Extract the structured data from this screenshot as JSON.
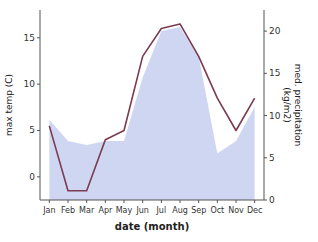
{
  "chart_data": {
    "type": "line",
    "xlabel": "date (month)",
    "ylabel": "max temp (C)",
    "y2label": "med. precipitation\n(kg/m2)",
    "categories": [
      "Jan",
      "Feb",
      "Mar",
      "Apr",
      "May",
      "Jun",
      "Jul",
      "Aug",
      "Sep",
      "Oct",
      "Nov",
      "Dec"
    ],
    "series": [
      {
        "type": "area",
        "axis": "y2",
        "color": "#c5cff0",
        "values": [
          9.5,
          7.0,
          6.5,
          7.0,
          7.0,
          14.5,
          20.0,
          20.5,
          17.0,
          5.5,
          7.0,
          11.0
        ]
      },
      {
        "type": "line",
        "color": "#7B3B50",
        "values": [
          5.5,
          -1.5,
          -1.5,
          4.0,
          5.0,
          13.0,
          16.0,
          16.5,
          13.0,
          8.5,
          5.0,
          8.5
        ]
      }
    ],
    "ylim": [
      -2.5,
      18
    ],
    "yticks": [
      0,
      5,
      10,
      15
    ],
    "y2lim": [
      0,
      22.5
    ],
    "y2ticks": [
      0,
      5,
      10,
      15,
      20
    ]
  }
}
